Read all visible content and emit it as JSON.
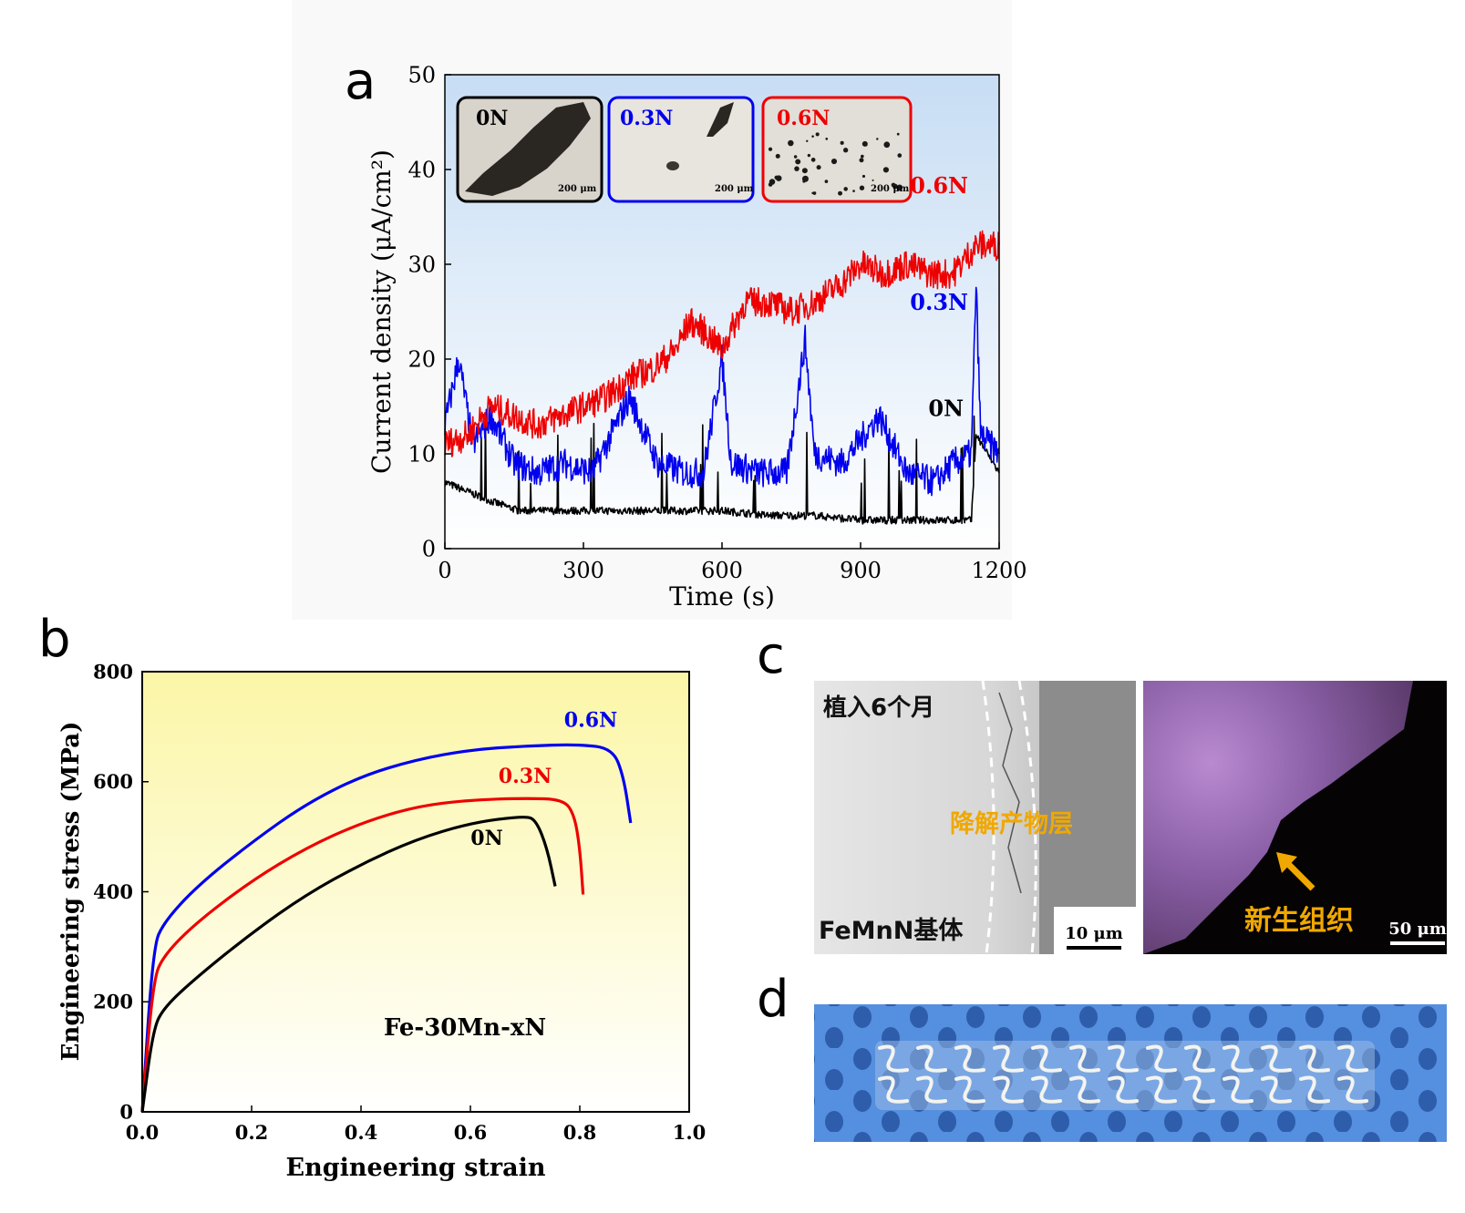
{
  "panels": {
    "a": "a",
    "b": "b",
    "c": "c",
    "d": "d"
  },
  "colors": {
    "0N": "#000000",
    "0.3N": "#0000ee",
    "0.6N": "#ee0000"
  },
  "chart_data": [
    {
      "id": "a",
      "type": "line",
      "xlabel": "Time (s)",
      "ylabel": "Current density (μA/cm²)",
      "xlim": [
        0,
        1200
      ],
      "ylim": [
        0,
        50
      ],
      "xticks": [
        0,
        300,
        600,
        900,
        1200
      ],
      "yticks": [
        0,
        10,
        20,
        30,
        40,
        50
      ],
      "background": "gradient light blue (top) to white (bottom)",
      "series": [
        {
          "name": "0N",
          "color": "#000000",
          "x": [
            0,
            50,
            100,
            160,
            240,
            330,
            420,
            500,
            600,
            700,
            800,
            900,
            1000,
            1100,
            1140,
            1150,
            1200
          ],
          "y": [
            7,
            6,
            5,
            4,
            4,
            4,
            4,
            4,
            4,
            3.5,
            3.5,
            3,
            3,
            3,
            3,
            12,
            8
          ]
        },
        {
          "name": "0.3N",
          "color": "#0000ee",
          "x": [
            0,
            30,
            60,
            100,
            150,
            200,
            260,
            320,
            400,
            460,
            520,
            560,
            600,
            620,
            680,
            740,
            780,
            800,
            860,
            940,
            1000,
            1060,
            1100,
            1140,
            1150,
            1160,
            1200
          ],
          "y": [
            13,
            20,
            11,
            14,
            9,
            8,
            9,
            8,
            16,
            9,
            8,
            8,
            20,
            9,
            8,
            8,
            22,
            10,
            9,
            14,
            8,
            7,
            9,
            10,
            28,
            12,
            10
          ]
        },
        {
          "name": "0.6N",
          "color": "#ee0000",
          "x": [
            0,
            50,
            100,
            150,
            200,
            250,
            300,
            350,
            400,
            450,
            500,
            530,
            560,
            600,
            650,
            700,
            750,
            800,
            860,
            900,
            950,
            1000,
            1050,
            1100,
            1150,
            1200
          ],
          "y": [
            11,
            12,
            15,
            14,
            13,
            14,
            15,
            16,
            18,
            19,
            21,
            24,
            23,
            21,
            26,
            26,
            25,
            26,
            28,
            30,
            29,
            30,
            29,
            29,
            32,
            32
          ]
        }
      ],
      "series_labels": [
        {
          "text": "0.6N",
          "color": "#ee0000",
          "x": 1070,
          "y": 37.5
        },
        {
          "text": "0.3N",
          "color": "#0000ee",
          "x": 1070,
          "y": 25.2
        },
        {
          "text": "0N",
          "color": "#000000",
          "x": 1085,
          "y": 14.0
        }
      ],
      "insets": [
        {
          "label": "0N",
          "scale": "200 μm",
          "border": "#000000"
        },
        {
          "label": "0.3N",
          "scale": "200 μm",
          "border": "#0000ee"
        },
        {
          "label": "0.6N",
          "scale": "200 μm",
          "border": "#ee0000"
        }
      ]
    },
    {
      "id": "b",
      "type": "line",
      "xlabel": "Engineering strain",
      "ylabel": "Engineering stress (MPa)",
      "xlim": [
        0,
        1.0
      ],
      "ylim": [
        0,
        800
      ],
      "xticks": [
        "0.0",
        "0.2",
        "0.4",
        "0.6",
        "0.8",
        "1.0"
      ],
      "yticks": [
        0,
        200,
        400,
        600,
        800
      ],
      "annotation": "Fe-30Mn-xN",
      "background": "gradient yellow (top) to white (bottom)",
      "series": [
        {
          "name": "0.6N",
          "color": "#0000ee",
          "x": [
            0,
            0.02,
            0.04,
            0.1,
            0.2,
            0.3,
            0.4,
            0.5,
            0.6,
            0.7,
            0.8,
            0.86,
            0.88,
            0.893
          ],
          "y": [
            0,
            300,
            345,
            410,
            490,
            560,
            610,
            640,
            658,
            665,
            668,
            660,
            610,
            525
          ]
        },
        {
          "name": "0.3N",
          "color": "#ee0000",
          "x": [
            0,
            0.02,
            0.04,
            0.1,
            0.2,
            0.3,
            0.4,
            0.5,
            0.6,
            0.7,
            0.77,
            0.79,
            0.8,
            0.806
          ],
          "y": [
            0,
            240,
            285,
            345,
            420,
            480,
            525,
            555,
            567,
            570,
            568,
            540,
            480,
            395
          ]
        },
        {
          "name": "0N",
          "color": "#000000",
          "x": [
            0,
            0.02,
            0.04,
            0.1,
            0.2,
            0.3,
            0.4,
            0.5,
            0.6,
            0.7,
            0.72,
            0.74,
            0.755
          ],
          "y": [
            0,
            150,
            190,
            245,
            325,
            395,
            450,
            495,
            525,
            538,
            530,
            480,
            410
          ]
        }
      ],
      "series_labels": [
        {
          "text": "0.6N",
          "color": "#0000ee",
          "x": 0.82,
          "y": 700
        },
        {
          "text": "0.3N",
          "color": "#ee0000",
          "x": 0.7,
          "y": 598
        },
        {
          "text": "0N",
          "color": "#000000",
          "x": 0.63,
          "y": 485
        }
      ]
    }
  ],
  "panel_c": {
    "left_title": "植入6个月",
    "left_layer": "降解产物层",
    "left_base": "FeMnN基体",
    "left_scale": "10 μm",
    "right_label": "新生组织",
    "right_scale": "50 μm"
  }
}
